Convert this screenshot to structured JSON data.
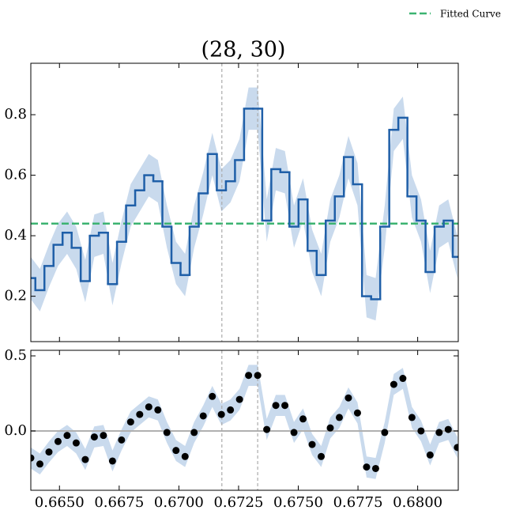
{
  "chart_data": [
    {
      "type": "step",
      "title": "(28, 30)",
      "x": [
        0.6638,
        0.66418,
        0.66456,
        0.66494,
        0.66532,
        0.6657,
        0.66608,
        0.66646,
        0.66684,
        0.66722,
        0.6676,
        0.66798,
        0.66836,
        0.66874,
        0.66912,
        0.6695,
        0.66988,
        0.67026,
        0.67064,
        0.67102,
        0.6714,
        0.67178,
        0.67216,
        0.67254,
        0.67292,
        0.6733,
        0.67368,
        0.67406,
        0.67444,
        0.67482,
        0.6752,
        0.67558,
        0.67596,
        0.67634,
        0.67672,
        0.6771,
        0.67748,
        0.67786,
        0.67824,
        0.67862,
        0.679,
        0.67938,
        0.67976,
        0.68014,
        0.68052,
        0.6809,
        0.68128,
        0.68166
      ],
      "series": [
        {
          "color": "#1f5fa8",
          "band_color": "#c9daed",
          "error": 0.07,
          "values": [
            0.26,
            0.22,
            0.3,
            0.37,
            0.41,
            0.36,
            0.25,
            0.4,
            0.41,
            0.24,
            0.38,
            0.5,
            0.55,
            0.6,
            0.58,
            0.43,
            0.31,
            0.27,
            0.43,
            0.54,
            0.67,
            0.55,
            0.58,
            0.65,
            0.82,
            0.82,
            0.45,
            0.62,
            0.61,
            0.43,
            0.52,
            0.35,
            0.27,
            0.45,
            0.53,
            0.66,
            0.57,
            0.2,
            0.19,
            0.43,
            0.75,
            0.79,
            0.53,
            0.45,
            0.28,
            0.43,
            0.45,
            0.33
          ]
        }
      ],
      "hlines": [
        {
          "name": "Fitted Curve",
          "value": 0.44,
          "color": "#3cb371"
        }
      ],
      "vlines": [
        0.6718,
        0.6733
      ],
      "xlim": [
        0.6638,
        0.6817
      ],
      "ylim": [
        0.05,
        0.97
      ],
      "yticks": [
        0.2,
        0.4,
        0.6,
        0.8
      ]
    },
    {
      "type": "scatter",
      "x": [
        0.6638,
        0.66418,
        0.66456,
        0.66494,
        0.66532,
        0.6657,
        0.66608,
        0.66646,
        0.66684,
        0.66722,
        0.6676,
        0.66798,
        0.66836,
        0.66874,
        0.66912,
        0.6695,
        0.66988,
        0.67026,
        0.67064,
        0.67102,
        0.6714,
        0.67178,
        0.67216,
        0.67254,
        0.67292,
        0.6733,
        0.67368,
        0.67406,
        0.67444,
        0.67482,
        0.6752,
        0.67558,
        0.67596,
        0.67634,
        0.67672,
        0.6771,
        0.67748,
        0.67786,
        0.67824,
        0.67862,
        0.679,
        0.67938,
        0.67976,
        0.68014,
        0.68052,
        0.6809,
        0.68128,
        0.68166
      ],
      "series": [
        {
          "color": "#000000",
          "band_color": "#c9daed",
          "error": 0.07,
          "values": [
            -0.18,
            -0.22,
            -0.14,
            -0.07,
            -0.03,
            -0.08,
            -0.19,
            -0.04,
            -0.03,
            -0.2,
            -0.06,
            0.06,
            0.11,
            0.16,
            0.14,
            -0.01,
            -0.13,
            -0.17,
            -0.01,
            0.1,
            0.23,
            0.11,
            0.14,
            0.21,
            0.37,
            0.37,
            0.01,
            0.17,
            0.17,
            -0.01,
            0.08,
            -0.09,
            -0.17,
            0.02,
            0.09,
            0.22,
            0.12,
            -0.24,
            -0.25,
            -0.01,
            0.31,
            0.35,
            0.09,
            0.0,
            -0.16,
            -0.01,
            0.01,
            -0.11
          ]
        }
      ],
      "hlines": [
        {
          "value": 0,
          "color": "#b0b0b0"
        }
      ],
      "vlines": [
        0.6718,
        0.6733
      ],
      "xlim": [
        0.6638,
        0.6817
      ],
      "ylim": [
        -0.395,
        0.537
      ],
      "xticks": [
        {
          "value": 0.665,
          "label": "0.6650"
        },
        {
          "value": 0.6675,
          "label": "0.6675"
        },
        {
          "value": 0.67,
          "label": "0.6700"
        },
        {
          "value": 0.6725,
          "label": "0.6725"
        },
        {
          "value": 0.675,
          "label": "0.6750"
        },
        {
          "value": 0.6775,
          "label": "0.6775"
        },
        {
          "value": 0.68,
          "label": "0.6800"
        }
      ],
      "yticks": [
        {
          "value": 0,
          "label": "0.0"
        },
        {
          "value": 0.5,
          "label": "0.5"
        }
      ]
    }
  ]
}
